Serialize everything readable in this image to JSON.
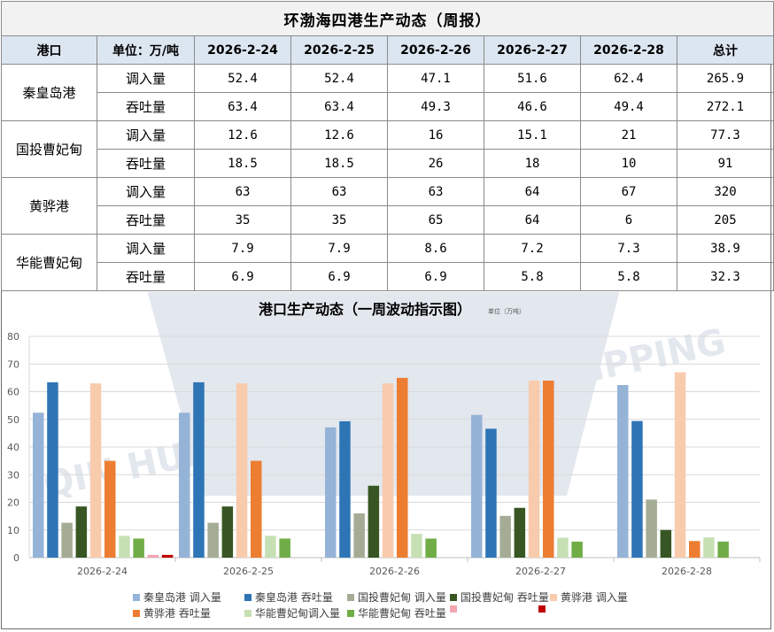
{
  "table": {
    "title": "环渤海四港生产动态（周报）",
    "header": [
      "港口",
      "单位：万/吨",
      "2026-2-24",
      "2026-2-25",
      "2026-2-26",
      "2026-2-27",
      "2026-2-28",
      "总计"
    ],
    "ports": [
      {
        "name": "秦皇岛港",
        "rows": [
          {
            "label": "调入量",
            "values": [
              "52.4",
              "52.4",
              "47.1",
              "51.6",
              "62.4"
            ],
            "total": "265.9"
          },
          {
            "label": "吞吐量",
            "values": [
              "63.4",
              "63.4",
              "49.3",
              "46.6",
              "49.4"
            ],
            "total": "272.1"
          }
        ]
      },
      {
        "name": "国投曹妃甸",
        "rows": [
          {
            "label": "调入量",
            "values": [
              "12.6",
              "12.6",
              "16",
              "15.1",
              "21"
            ],
            "total": "77.3"
          },
          {
            "label": "吞吐量",
            "values": [
              "18.5",
              "18.5",
              "26",
              "18",
              "10"
            ],
            "total": "91"
          }
        ]
      },
      {
        "name": "黄骅港",
        "rows": [
          {
            "label": "调入量",
            "values": [
              "63",
              "63",
              "63",
              "64",
              "67"
            ],
            "total": "320"
          },
          {
            "label": "吞吐量",
            "values": [
              "35",
              "35",
              "65",
              "64",
              "6"
            ],
            "total": "205"
          }
        ]
      },
      {
        "name": "华能曹妃甸",
        "rows": [
          {
            "label": "调入量",
            "values": [
              "7.9",
              "7.9",
              "8.6",
              "7.2",
              "7.3"
            ],
            "total": "38.9"
          },
          {
            "label": "吞吐量",
            "values": [
              "6.9",
              "6.9",
              "6.9",
              "5.8",
              "5.8"
            ],
            "total": "32.3"
          }
        ]
      }
    ]
  },
  "watermark_text": "QIN HUANG DAO YIN HAI SHIPPING",
  "chart_data": {
    "type": "bar",
    "title": "港口生产动态（一周波动指示图）",
    "unit_note": "单位（万吨）",
    "categories": [
      "2026-2-24",
      "2026-2-25",
      "2026-2-26",
      "2026-2-27",
      "2026-2-28"
    ],
    "ylim": [
      0,
      80
    ],
    "yticks": [
      0,
      10,
      20,
      30,
      40,
      50,
      60,
      70,
      80
    ],
    "grid": true,
    "legend_position": "bottom",
    "series": [
      {
        "name": "秦皇岛港 调入量",
        "color": "#95b3d7",
        "values": [
          52.4,
          52.4,
          47.1,
          51.6,
          62.4
        ]
      },
      {
        "name": "秦皇岛港 吞吐量",
        "color": "#2e75b6",
        "values": [
          63.4,
          63.4,
          49.3,
          46.6,
          49.4
        ]
      },
      {
        "name": "国投曹妃甸 调入量",
        "color": "#a5ac95",
        "values": [
          12.6,
          12.6,
          16,
          15.1,
          21
        ]
      },
      {
        "name": "国投曹妃甸 吞吐量",
        "color": "#375623",
        "values": [
          18.5,
          18.5,
          26,
          18,
          10
        ]
      },
      {
        "name": "黄骅港 调入量",
        "color": "#f8cbad",
        "values": [
          63,
          63,
          63,
          64,
          67
        ]
      },
      {
        "name": "黄骅港 吞吐量",
        "color": "#ed7d31",
        "values": [
          35,
          35,
          65,
          64,
          6
        ]
      },
      {
        "name": "华能曹妃甸调入量",
        "color": "#c6e0b4",
        "values": [
          7.9,
          7.9,
          8.6,
          7.2,
          7.3
        ]
      },
      {
        "name": "华能曹妃甸 吞吐量",
        "color": "#70ad47",
        "values": [
          6.9,
          6.9,
          6.9,
          5.8,
          5.8
        ]
      },
      {
        "name": "",
        "color": "#f4a6b0",
        "values": [
          1,
          0,
          0,
          0,
          0
        ]
      },
      {
        "name": "",
        "color": "#c00000",
        "values": [
          1,
          0,
          0,
          0,
          0
        ]
      }
    ]
  }
}
